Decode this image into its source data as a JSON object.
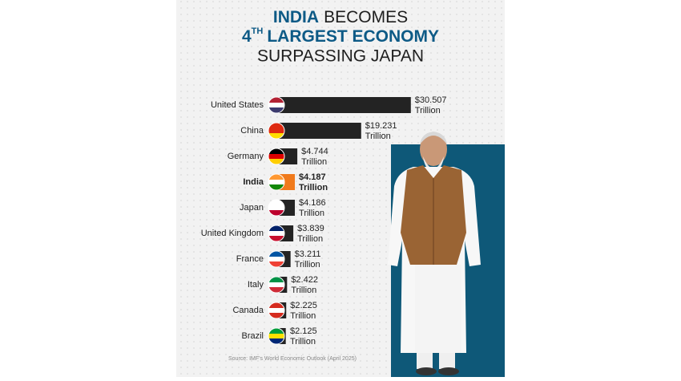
{
  "chart_data": {
    "type": "bar",
    "title_lines": [
      [
        "INDIA",
        "BECOMES"
      ],
      [
        "4",
        "TH",
        "LARGEST ECONOMY"
      ],
      [
        "SURPASSING JAPAN"
      ]
    ],
    "categories": [
      "United States",
      "China",
      "Germany",
      "India",
      "Japan",
      "United Kingdom",
      "France",
      "Italy",
      "Canada",
      "Brazil"
    ],
    "values": [
      30.507,
      19.231,
      4.744,
      4.187,
      4.186,
      3.839,
      3.211,
      2.422,
      2.225,
      2.125
    ],
    "value_labels": [
      "$30.507",
      "$19.231",
      "$4.744",
      "$4.187",
      "$4.186",
      "$3.839",
      "$3.211",
      "$2.422",
      "$2.225",
      "$2.125"
    ],
    "unit_label": "Trillion",
    "colors": [
      "#232323",
      "#232323",
      "#232323",
      "#f07a1c",
      "#232323",
      "#232323",
      "#232323",
      "#232323",
      "#232323",
      "#232323"
    ],
    "source": "Source: IMF's World Economic Outlook (April 2025)"
  }
}
